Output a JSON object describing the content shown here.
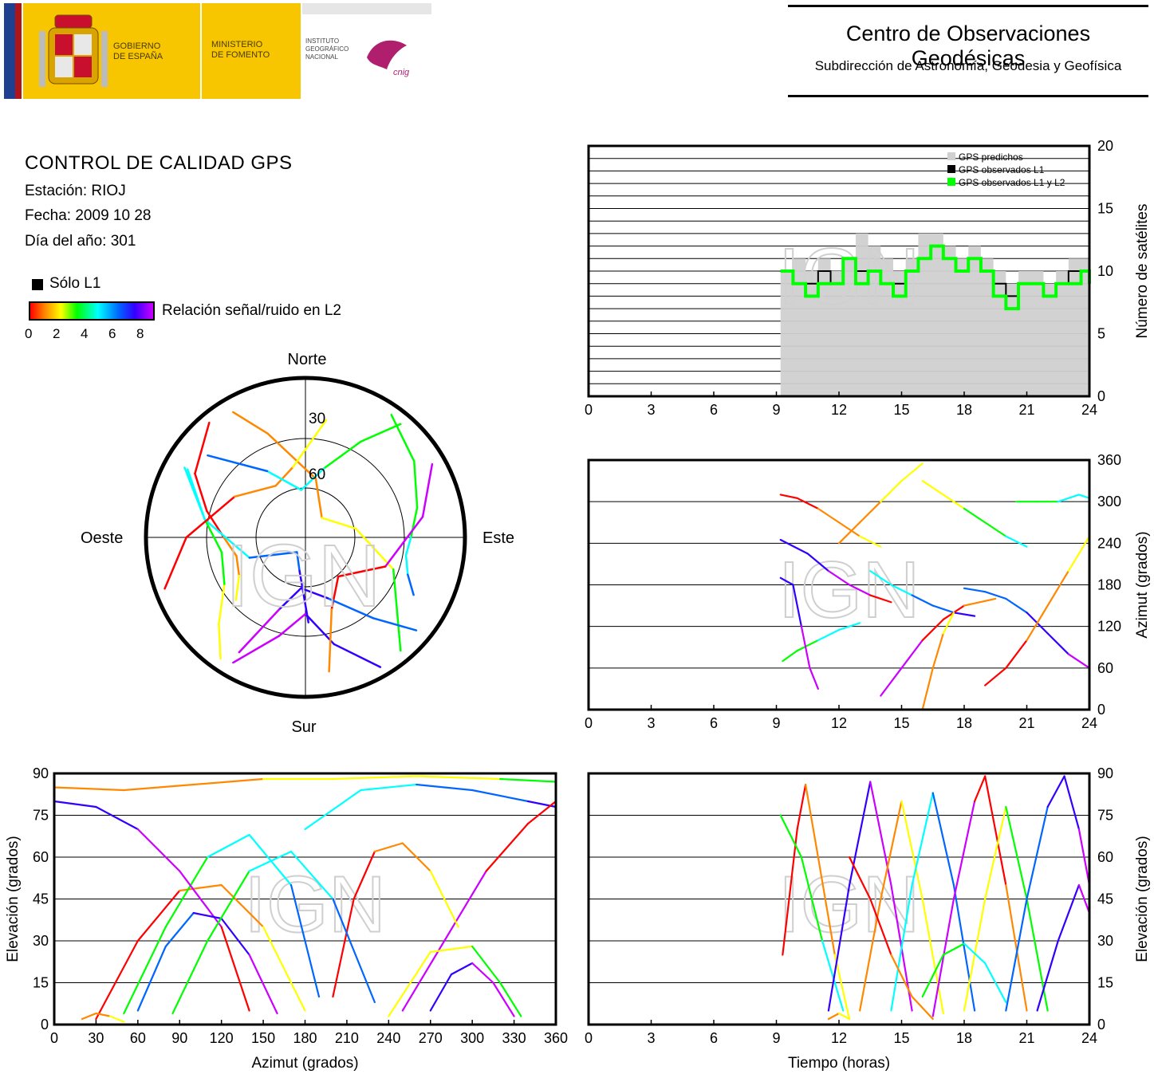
{
  "header": {
    "gov_line1": "GOBIERNO",
    "gov_line2": "DE ESPAÑA",
    "min_line1": "MINISTERIO",
    "min_line2": "DE FOMENTO",
    "ign_line1": "INSTITUTO",
    "ign_line2": "GEOGRÁFICO",
    "ign_line3": "NACIONAL",
    "cnig_text": "cnig",
    "center_title": "Centro de Observaciones Geodésicas",
    "center_subtitle": "Subdirección de Astronomía, Geodesia y Geofísica",
    "colors": {
      "flag_red": "#ad1519",
      "gov_yellow": "#f7c600"
    }
  },
  "info": {
    "title": "CONTROL DE CALIDAD GPS",
    "station": "Estación: RIOJ",
    "date": "Fecha: 2009 10 28",
    "doy": "Día del año: 301"
  },
  "legend": {
    "l1_only": "Sólo L1",
    "colorbar_label": "Relación señal/ruido en L2",
    "colorbar_ticks": [
      "0",
      "2",
      "4",
      "6",
      "8"
    ],
    "colorbar_colors": [
      "#ff0000",
      "#ff8800",
      "#ffff00",
      "#00ff00",
      "#00ffff",
      "#0066ff",
      "#3300ff",
      "#cc00ff"
    ]
  },
  "watermark": "IGN",
  "chart_data": [
    {
      "type": "polar-skyplot",
      "directions": {
        "north": "Norte",
        "south": "Sur",
        "east": "Este",
        "west": "Oeste"
      },
      "ring_labels": [
        "30",
        "60"
      ],
      "rings_elevation_deg": [
        0,
        30,
        60
      ],
      "tracks": [
        {
          "az": [
            320,
            300,
            285,
            270,
            255,
            240,
            228
          ],
          "el": [
            2,
            15,
            30,
            42,
            48,
            45,
            35
          ]
        },
        {
          "az": [
            35,
            55,
            75,
            90,
            100,
            110,
            118
          ],
          "el": [
            2,
            12,
            22,
            28,
            30,
            26,
            18
          ]
        },
        {
          "az": [
            150,
            165,
            180,
            195,
            210
          ],
          "el": [
            2,
            25,
            45,
            30,
            5
          ]
        },
        {
          "az": [
            330,
            340,
            10,
            40,
            80,
            110,
            140
          ],
          "el": [
            5,
            25,
            55,
            75,
            60,
            35,
            3
          ]
        },
        {
          "az": [
            300,
            280,
            250,
            210,
            190,
            178
          ],
          "el": [
            10,
            30,
            55,
            80,
            70,
            40
          ]
        },
        {
          "az": [
            60,
            80,
            110,
            140,
            160,
            170
          ],
          "el": [
            4,
            20,
            40,
            60,
            45,
            10
          ]
        },
        {
          "az": [
            215,
            225,
            240,
            260,
            280,
            300
          ],
          "el": [
            3,
            18,
            35,
            40,
            30,
            8
          ]
        },
        {
          "az": [
            130,
            140,
            160,
            185,
            200,
            210
          ],
          "el": [
            5,
            28,
            52,
            60,
            45,
            12
          ]
        },
        {
          "az": [
            250,
            270,
            300,
            330,
            350,
            10
          ],
          "el": [
            2,
            20,
            42,
            55,
            48,
            20
          ]
        },
        {
          "az": [
            40,
            30,
            15,
            355,
            330,
            310
          ],
          "el": [
            3,
            25,
            48,
            62,
            45,
            15
          ]
        }
      ]
    },
    {
      "type": "area",
      "title": "",
      "xlabel": "",
      "ylabel": "Número de satélites",
      "xlim": [
        0,
        24
      ],
      "ylim": [
        0,
        20
      ],
      "xticks": [
        "0",
        "3",
        "6",
        "9",
        "12",
        "15",
        "18",
        "21",
        "24"
      ],
      "yticks": [
        "0",
        "5",
        "10",
        "15",
        "20"
      ],
      "legend": [
        "GPS predichos",
        "GPS observados L1",
        "GPS observados L1 y L2"
      ],
      "legend_position": "top-right",
      "series": [
        {
          "name": "GPS predichos",
          "color": "#d0d0d0",
          "x": [
            9.2,
            9.8,
            10.4,
            11.0,
            11.6,
            12.2,
            12.8,
            13.4,
            14.0,
            14.6,
            15.2,
            15.8,
            16.4,
            17.0,
            17.6,
            18.2,
            18.8,
            19.4,
            20.0,
            20.6,
            21.2,
            21.8,
            22.4,
            23.0,
            23.6,
            24.0
          ],
          "y": [
            10,
            11,
            10,
            11,
            10,
            11,
            13,
            12,
            11,
            10,
            11,
            13,
            13,
            12,
            11,
            12,
            11,
            10,
            9,
            10,
            10,
            9,
            10,
            11,
            11,
            10
          ]
        },
        {
          "name": "GPS observados L1",
          "color": "#000000",
          "x": [
            9.2,
            9.8,
            10.4,
            11.0,
            11.6,
            12.2,
            12.8,
            13.4,
            14.0,
            14.6,
            15.2,
            15.8,
            16.4,
            17.0,
            17.6,
            18.2,
            18.8,
            19.4,
            20.0,
            20.6,
            21.2,
            21.8,
            22.4,
            23.0,
            23.6,
            24.0
          ],
          "y": [
            10,
            9,
            9,
            10,
            9,
            11,
            10,
            10,
            9,
            9,
            10,
            11,
            12,
            11,
            10,
            11,
            10,
            9,
            8,
            9,
            9,
            8,
            9,
            10,
            10,
            9
          ]
        },
        {
          "name": "GPS observados L1 y L2",
          "color": "#00ff00",
          "x": [
            9.2,
            9.8,
            10.4,
            11.0,
            11.6,
            12.2,
            12.8,
            13.4,
            14.0,
            14.6,
            15.2,
            15.8,
            16.4,
            17.0,
            17.6,
            18.2,
            18.8,
            19.4,
            20.0,
            20.6,
            21.2,
            21.8,
            22.4,
            23.0,
            23.6,
            24.0
          ],
          "y": [
            10,
            9,
            8,
            9,
            9,
            11,
            9,
            10,
            9,
            8,
            10,
            11,
            12,
            11,
            10,
            11,
            10,
            8,
            7,
            9,
            9,
            8,
            9,
            9,
            10,
            9
          ]
        }
      ]
    },
    {
      "type": "scatter",
      "title": "",
      "xlabel": "",
      "ylabel": "Azimut (grados)",
      "xlim": [
        0,
        24
      ],
      "ylim": [
        0,
        360
      ],
      "xticks": [
        "0",
        "3",
        "6",
        "9",
        "12",
        "15",
        "18",
        "21",
        "24"
      ],
      "yticks": [
        "0",
        "60",
        "120",
        "180",
        "240",
        "300",
        "360"
      ],
      "tracks": [
        {
          "x": [
            9.2,
            10.0,
            11.0,
            12.0,
            13.0,
            14.0
          ],
          "y": [
            310,
            305,
            290,
            270,
            250,
            235
          ]
        },
        {
          "x": [
            9.3,
            10.0,
            11.0,
            12.0,
            13.0
          ],
          "y": [
            70,
            85,
            100,
            115,
            125
          ]
        },
        {
          "x": [
            9.2,
            10.5,
            11.5,
            12.5,
            13.5,
            14.5
          ],
          "y": [
            245,
            225,
            200,
            180,
            165,
            155
          ]
        },
        {
          "x": [
            12.0,
            13.0,
            14.0,
            15.0,
            16.0
          ],
          "y": [
            240,
            270,
            300,
            330,
            355
          ]
        },
        {
          "x": [
            13.5,
            14.5,
            15.5,
            16.5,
            17.5,
            18.5
          ],
          "y": [
            200,
            180,
            165,
            150,
            140,
            135
          ]
        },
        {
          "x": [
            14.0,
            15.0,
            16.0,
            17.0,
            18.0,
            19.5
          ],
          "y": [
            20,
            60,
            100,
            130,
            150,
            160
          ]
        },
        {
          "x": [
            16.0,
            17.0,
            18.0,
            19.0,
            20.0,
            21.0
          ],
          "y": [
            330,
            310,
            290,
            270,
            250,
            235
          ]
        },
        {
          "x": [
            18.0,
            19.0,
            20.0,
            21.0,
            22.0,
            23.0,
            24.0
          ],
          "y": [
            175,
            170,
            160,
            140,
            110,
            80,
            60
          ]
        },
        {
          "x": [
            19.0,
            20.0,
            21.0,
            22.0,
            23.0,
            24.0
          ],
          "y": [
            35,
            60,
            100,
            150,
            200,
            250
          ]
        },
        {
          "x": [
            20.5,
            21.5,
            22.5,
            23.5,
            24.0
          ],
          "y": [
            300,
            300,
            300,
            310,
            305
          ]
        },
        {
          "x": [
            9.2,
            9.8,
            10.2,
            10.6,
            11.0
          ],
          "y": [
            190,
            180,
            120,
            60,
            30
          ]
        },
        {
          "x": [
            16.0,
            16.5,
            17.0,
            17.5
          ],
          "y": [
            0,
            60,
            110,
            140
          ]
        }
      ]
    },
    {
      "type": "scatter",
      "title": "",
      "xlabel": "Azimut (grados)",
      "ylabel": "Elevación (grados)",
      "xlim": [
        0,
        360
      ],
      "ylim": [
        0,
        90
      ],
      "xticks": [
        "0",
        "30",
        "60",
        "90",
        "120",
        "150",
        "180",
        "210",
        "240",
        "270",
        "300",
        "330",
        "360"
      ],
      "yticks": [
        "0",
        "15",
        "30",
        "45",
        "60",
        "75",
        "90"
      ],
      "tracks": [
        {
          "x": [
            30,
            60,
            90,
            120,
            150,
            180
          ],
          "y": [
            2,
            30,
            48,
            50,
            35,
            5
          ]
        },
        {
          "x": [
            50,
            80,
            110,
            140,
            170,
            190
          ],
          "y": [
            4,
            35,
            60,
            68,
            50,
            10
          ]
        },
        {
          "x": [
            0,
            30,
            60,
            90,
            120,
            140
          ],
          "y": [
            80,
            78,
            70,
            55,
            35,
            5
          ]
        },
        {
          "x": [
            0,
            50,
            100,
            150,
            200,
            260,
            320,
            360
          ],
          "y": [
            85,
            84,
            86,
            88,
            88,
            89,
            88,
            87
          ]
        },
        {
          "x": [
            180,
            220,
            260,
            300,
            340,
            360
          ],
          "y": [
            70,
            84,
            86,
            84,
            80,
            78
          ]
        },
        {
          "x": [
            250,
            280,
            310,
            340,
            360
          ],
          "y": [
            5,
            30,
            55,
            72,
            80
          ]
        },
        {
          "x": [
            240,
            270,
            300,
            320,
            335
          ],
          "y": [
            3,
            26,
            28,
            15,
            3
          ]
        },
        {
          "x": [
            60,
            80,
            100,
            120,
            140,
            160
          ],
          "y": [
            5,
            28,
            40,
            38,
            25,
            4
          ]
        },
        {
          "x": [
            200,
            215,
            230,
            250,
            270,
            290
          ],
          "y": [
            10,
            45,
            62,
            65,
            55,
            35
          ]
        },
        {
          "x": [
            85,
            110,
            140,
            170,
            200,
            230
          ],
          "y": [
            4,
            30,
            55,
            62,
            45,
            8
          ]
        },
        {
          "x": [
            270,
            285,
            300,
            315,
            330
          ],
          "y": [
            5,
            18,
            22,
            15,
            3
          ]
        },
        {
          "x": [
            20,
            30,
            40,
            50
          ],
          "y": [
            2,
            4,
            3,
            1
          ]
        }
      ]
    },
    {
      "type": "scatter",
      "title": "",
      "xlabel": "Tiempo (horas)",
      "ylabel": "Elevación (grados)",
      "xlim": [
        0,
        24
      ],
      "ylim": [
        0,
        90
      ],
      "xticks": [
        "0",
        "3",
        "6",
        "9",
        "12",
        "15",
        "18",
        "21",
        "24"
      ],
      "yticks": [
        "0",
        "15",
        "30",
        "45",
        "60",
        "75",
        "90"
      ],
      "tracks": [
        {
          "x": [
            9.3,
            10.0,
            10.4,
            11.0,
            11.8,
            12.5
          ],
          "y": [
            25,
            70,
            86,
            60,
            25,
            2
          ]
        },
        {
          "x": [
            9.2,
            10.2,
            11.2,
            12.2
          ],
          "y": [
            75,
            60,
            30,
            5
          ]
        },
        {
          "x": [
            11.5,
            12.5,
            13.5,
            14.5,
            15.5
          ],
          "y": [
            5,
            50,
            87,
            50,
            5
          ]
        },
        {
          "x": [
            13.0,
            14.0,
            15.0,
            16.0,
            17.0
          ],
          "y": [
            5,
            45,
            80,
            45,
            4
          ]
        },
        {
          "x": [
            14.5,
            15.5,
            16.5,
            17.5,
            18.5
          ],
          "y": [
            5,
            50,
            83,
            50,
            5
          ]
        },
        {
          "x": [
            16.5,
            17.5,
            18.5,
            19.0,
            20.0,
            21.0
          ],
          "y": [
            3,
            45,
            80,
            89,
            50,
            5
          ]
        },
        {
          "x": [
            18.0,
            19.0,
            20.0,
            21.0,
            22.0
          ],
          "y": [
            5,
            45,
            78,
            45,
            5
          ]
        },
        {
          "x": [
            20.0,
            21.0,
            22.0,
            22.8,
            23.5,
            24.0
          ],
          "y": [
            5,
            45,
            78,
            89,
            70,
            50
          ]
        },
        {
          "x": [
            12.5,
            13.5,
            14.5,
            15.5,
            16.5
          ],
          "y": [
            60,
            45,
            25,
            10,
            2
          ]
        },
        {
          "x": [
            16.0,
            17.0,
            18.0,
            19.0,
            20.0
          ],
          "y": [
            10,
            25,
            29,
            22,
            8
          ]
        },
        {
          "x": [
            21.5,
            22.5,
            23.5,
            24.0
          ],
          "y": [
            5,
            30,
            50,
            40
          ]
        },
        {
          "x": [
            11.5,
            12.0,
            12.5
          ],
          "y": [
            2,
            4,
            2
          ]
        }
      ]
    }
  ]
}
